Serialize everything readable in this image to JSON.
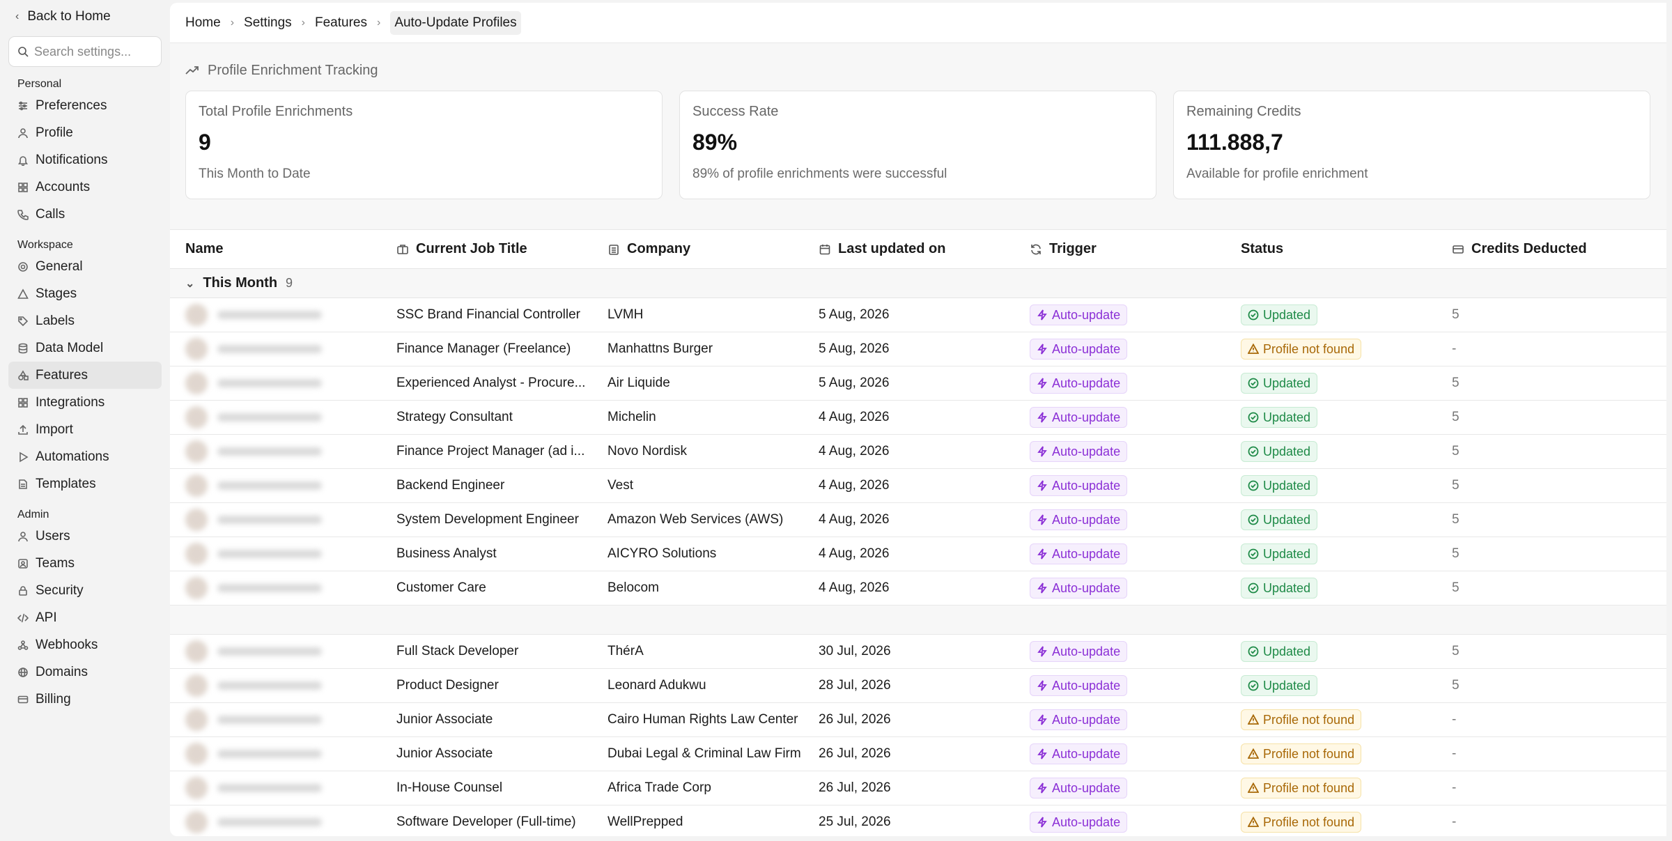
{
  "sidebar": {
    "back_label": "Back to Home",
    "search_placeholder": "Search settings...",
    "sections": [
      {
        "label": "Personal",
        "items": [
          {
            "label": "Preferences",
            "icon": "sliders-icon"
          },
          {
            "label": "Profile",
            "icon": "user-icon"
          },
          {
            "label": "Notifications",
            "icon": "bell-icon"
          },
          {
            "label": "Accounts",
            "icon": "grid-icon"
          },
          {
            "label": "Calls",
            "icon": "phone-icon"
          }
        ]
      },
      {
        "label": "Workspace",
        "items": [
          {
            "label": "General",
            "icon": "gear-icon"
          },
          {
            "label": "Stages",
            "icon": "triangle-icon"
          },
          {
            "label": "Labels",
            "icon": "tag-icon"
          },
          {
            "label": "Data Model",
            "icon": "database-icon"
          },
          {
            "label": "Features",
            "icon": "shapes-icon",
            "active": true
          },
          {
            "label": "Integrations",
            "icon": "puzzle-icon"
          },
          {
            "label": "Import",
            "icon": "upload-icon"
          },
          {
            "label": "Automations",
            "icon": "play-icon"
          },
          {
            "label": "Templates",
            "icon": "file-icon"
          }
        ]
      },
      {
        "label": "Admin",
        "items": [
          {
            "label": "Users",
            "icon": "user-icon"
          },
          {
            "label": "Teams",
            "icon": "team-icon"
          },
          {
            "label": "Security",
            "icon": "lock-icon"
          },
          {
            "label": "API",
            "icon": "code-icon"
          },
          {
            "label": "Webhooks",
            "icon": "webhook-icon"
          },
          {
            "label": "Domains",
            "icon": "globe-icon"
          },
          {
            "label": "Billing",
            "icon": "card-icon"
          }
        ]
      }
    ]
  },
  "breadcrumb": [
    "Home",
    "Settings",
    "Features",
    "Auto-Update Profiles"
  ],
  "tracking": {
    "title": "Profile Enrichment Tracking",
    "cards": [
      {
        "title": "Total Profile Enrichments",
        "value": "9",
        "sub": "This Month to Date"
      },
      {
        "title": "Success Rate",
        "value": "89%",
        "sub": "89% of profile enrichments were successful"
      },
      {
        "title": "Remaining Credits",
        "value": "111.888,7",
        "sub": "Available for profile enrichment"
      }
    ]
  },
  "table": {
    "headers": {
      "name": "Name",
      "job": "Current Job Title",
      "company": "Company",
      "date": "Last updated on",
      "trigger": "Trigger",
      "status": "Status",
      "credits": "Credits Deducted"
    },
    "group": {
      "label": "This Month",
      "count": "9"
    },
    "rows_this_month": [
      {
        "job": "SSC Brand Financial Controller",
        "company": "LVMH",
        "date": "5 Aug, 2026",
        "trigger": "Auto-update",
        "status": "Updated",
        "status_type": "ok",
        "credits": "5"
      },
      {
        "job": "Finance Manager (Freelance)",
        "company": "Manhattns Burger",
        "date": "5 Aug, 2026",
        "trigger": "Auto-update",
        "status": "Profile not found",
        "status_type": "warn",
        "credits": "-"
      },
      {
        "job": "Experienced Analyst - Procure...",
        "company": "Air Liquide",
        "date": "5 Aug, 2026",
        "trigger": "Auto-update",
        "status": "Updated",
        "status_type": "ok",
        "credits": "5"
      },
      {
        "job": "Strategy Consultant",
        "company": "Michelin",
        "date": "4 Aug, 2026",
        "trigger": "Auto-update",
        "status": "Updated",
        "status_type": "ok",
        "credits": "5"
      },
      {
        "job": "Finance Project Manager (ad i...",
        "company": "Novo Nordisk",
        "date": "4 Aug, 2026",
        "trigger": "Auto-update",
        "status": "Updated",
        "status_type": "ok",
        "credits": "5"
      },
      {
        "job": "Backend Engineer",
        "company": "Vest",
        "date": "4 Aug, 2026",
        "trigger": "Auto-update",
        "status": "Updated",
        "status_type": "ok",
        "credits": "5"
      },
      {
        "job": "System Development Engineer",
        "company": "Amazon Web Services (AWS)",
        "date": "4 Aug, 2026",
        "trigger": "Auto-update",
        "status": "Updated",
        "status_type": "ok",
        "credits": "5"
      },
      {
        "job": "Business Analyst",
        "company": "AICYRO Solutions",
        "date": "4 Aug, 2026",
        "trigger": "Auto-update",
        "status": "Updated",
        "status_type": "ok",
        "credits": "5"
      },
      {
        "job": "Customer Care",
        "company": "Belocom",
        "date": "4 Aug, 2026",
        "trigger": "Auto-update",
        "status": "Updated",
        "status_type": "ok",
        "credits": "5"
      }
    ],
    "rows_earlier": [
      {
        "job": "Full Stack Developer",
        "company": "ThérA",
        "date": "30 Jul, 2026",
        "trigger": "Auto-update",
        "status": "Updated",
        "status_type": "ok",
        "credits": "5"
      },
      {
        "job": "Product Designer",
        "company": "Leonard Adukwu",
        "date": "28 Jul, 2026",
        "trigger": "Auto-update",
        "status": "Updated",
        "status_type": "ok",
        "credits": "5"
      },
      {
        "job": "Junior Associate",
        "company": "Cairo Human Rights Law Center",
        "date": "26 Jul, 2026",
        "trigger": "Auto-update",
        "status": "Profile not found",
        "status_type": "warn",
        "credits": "-"
      },
      {
        "job": "Junior Associate",
        "company": "Dubai Legal & Criminal Law Firm",
        "date": "26 Jul, 2026",
        "trigger": "Auto-update",
        "status": "Profile not found",
        "status_type": "warn",
        "credits": "-"
      },
      {
        "job": "In-House Counsel",
        "company": "Africa Trade Corp",
        "date": "26 Jul, 2026",
        "trigger": "Auto-update",
        "status": "Profile not found",
        "status_type": "warn",
        "credits": "-"
      },
      {
        "job": "Software Developer (Full-time)",
        "company": "WellPrepped",
        "date": "25 Jul, 2026",
        "trigger": "Auto-update",
        "status": "Profile not found",
        "status_type": "warn",
        "credits": "-"
      }
    ]
  },
  "colors": {
    "trigger": "#8b2fd6",
    "updated": "#1e8a47",
    "warning": "#a86807",
    "chat_dot": "#f26a2a"
  }
}
